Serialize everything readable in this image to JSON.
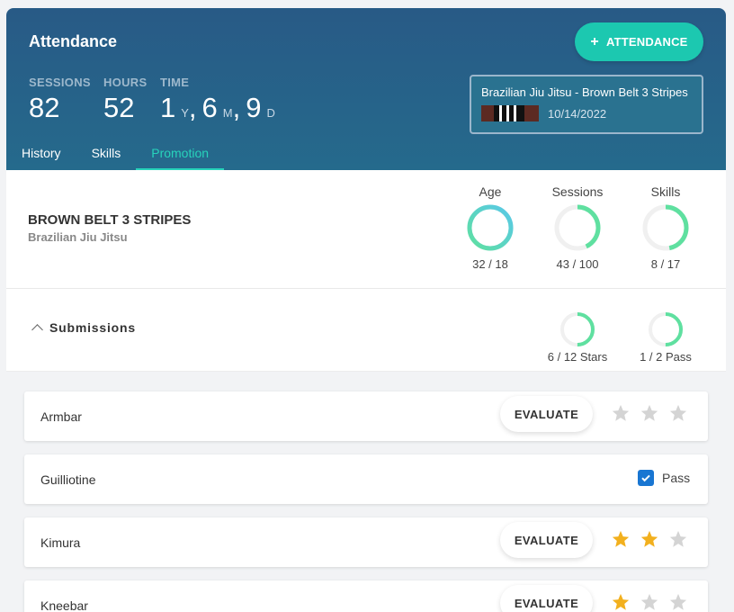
{
  "header": {
    "title": "Attendance",
    "attendance_button": "ATTENDANCE",
    "stats": {
      "sessions": {
        "label": "SESSIONS",
        "value": "82"
      },
      "hours": {
        "label": "HOURS",
        "value": "52"
      },
      "time": {
        "label": "TIME",
        "years": "1",
        "years_unit": "Y",
        "months": "6",
        "months_unit": "M",
        "days": "9",
        "days_unit": "D"
      }
    },
    "belt_card": {
      "name": "Brazilian Jiu Jitsu - Brown Belt 3 Stripes",
      "date": "10/14/2022"
    }
  },
  "tabs": [
    {
      "label": "History"
    },
    {
      "label": "Skills"
    },
    {
      "label": "Promotion",
      "active": true
    }
  ],
  "rank": {
    "title": "BROWN BELT 3 STRIPES",
    "subtitle": "Brazilian Jiu Jitsu",
    "progress": [
      {
        "label": "Age",
        "value": "32 / 18",
        "fraction": 1.0
      },
      {
        "label": "Sessions",
        "value": "43 / 100",
        "fraction": 0.43
      },
      {
        "label": "Skills",
        "value": "8 / 17",
        "fraction": 0.47
      }
    ]
  },
  "submissions": {
    "title": "Submissions",
    "progress": [
      {
        "value": "6 / 12 Stars",
        "fraction": 0.5
      },
      {
        "value": "1 / 2 Pass",
        "fraction": 0.5
      }
    ],
    "evaluate_label": "EVALUATE",
    "pass_label": "Pass",
    "items": [
      {
        "name": "Armbar",
        "type": "stars",
        "stars": 0
      },
      {
        "name": "Guilliotine",
        "type": "pass",
        "checked": true
      },
      {
        "name": "Kimura",
        "type": "stars",
        "stars": 2
      },
      {
        "name": "Kneebar",
        "type": "stars",
        "stars": 1
      }
    ]
  },
  "colors": {
    "header_bg": "#285a86",
    "accent_teal": "#1cc8b0",
    "star_filled": "#f2b01e",
    "star_empty": "#d4d4d4",
    "checkbox": "#1976d2"
  }
}
